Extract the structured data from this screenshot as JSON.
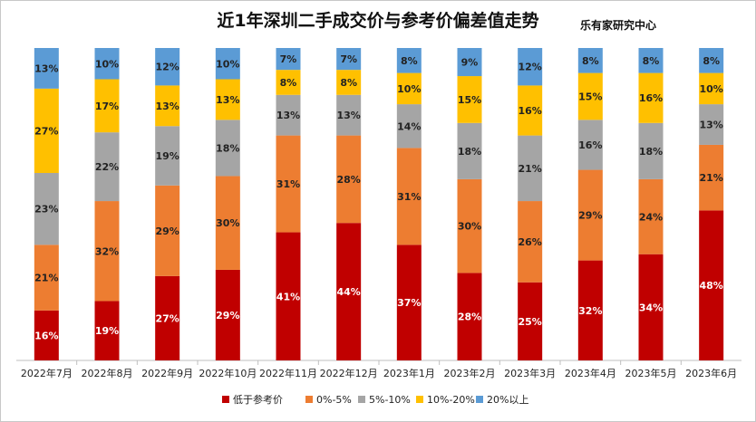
{
  "title": "近1年深圳二手成交价与参考价偏差值走势",
  "brand": "乐有家研究中心",
  "watermark": "乐有家",
  "chart_data": {
    "type": "bar",
    "stacked": true,
    "percent_stacked": true,
    "categories": [
      "2022年7月",
      "2022年8月",
      "2022年9月",
      "2022年10月",
      "2022年11月",
      "2022年12月",
      "2023年1月",
      "2023年2月",
      "2023年3月",
      "2023年4月",
      "2023年5月",
      "2023年6月"
    ],
    "series": [
      {
        "name": "低于参考价",
        "color": "#C00000",
        "values": [
          16,
          19,
          27,
          29,
          41,
          44,
          37,
          28,
          25,
          32,
          34,
          48
        ]
      },
      {
        "name": "0%-5%",
        "color": "#ED7D31",
        "values": [
          21,
          32,
          29,
          30,
          31,
          28,
          31,
          30,
          26,
          29,
          24,
          21
        ]
      },
      {
        "name": "5%-10%",
        "color": "#A5A5A5",
        "values": [
          23,
          22,
          19,
          18,
          13,
          13,
          14,
          18,
          21,
          16,
          18,
          13
        ]
      },
      {
        "name": "10%-20%",
        "color": "#FFC000",
        "values": [
          27,
          17,
          13,
          13,
          8,
          8,
          10,
          15,
          16,
          15,
          16,
          10
        ]
      },
      {
        "name": "20%以上",
        "color": "#5B9BD5",
        "values": [
          13,
          10,
          12,
          10,
          7,
          7,
          8,
          9,
          12,
          8,
          8,
          8
        ]
      }
    ],
    "ylim": [
      0,
      100
    ],
    "legend_position": "bottom",
    "grid": false,
    "data_label_suffix": "%"
  }
}
